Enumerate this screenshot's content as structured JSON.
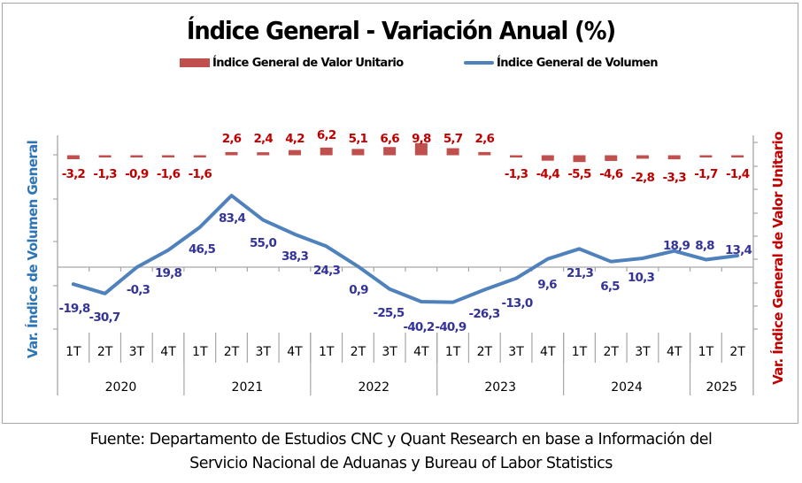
{
  "chart_data": {
    "type": "bar+line",
    "title": "Índice General - Variación Anual (%)",
    "legend": {
      "placement": "top",
      "entries": [
        {
          "name": "Índice General de Valor Unitario",
          "type": "bar",
          "color": "#c0504d"
        },
        {
          "name": "Índice General de Volumen",
          "type": "line",
          "color": "#4f81bd"
        }
      ]
    },
    "years": [
      {
        "label": "2020",
        "quarters": 4
      },
      {
        "label": "2021",
        "quarters": 4
      },
      {
        "label": "2022",
        "quarters": 4
      },
      {
        "label": "2023",
        "quarters": 4
      },
      {
        "label": "2024",
        "quarters": 4
      },
      {
        "label": "2025",
        "quarters": 2
      }
    ],
    "categories": [
      "1T",
      "2T",
      "3T",
      "4T",
      "1T",
      "2T",
      "3T",
      "4T",
      "1T",
      "2T",
      "3T",
      "4T",
      "1T",
      "2T",
      "3T",
      "4T",
      "1T",
      "2T",
      "3T",
      "4T",
      "1T",
      "2T"
    ],
    "series": [
      {
        "name": "Índice General de Valor Unitario",
        "type": "bar",
        "axis": "right",
        "color": "#c0504d",
        "label_color": "#c00000",
        "values": [
          -3.2,
          -1.3,
          -0.9,
          -1.6,
          -1.6,
          2.6,
          2.4,
          4.2,
          6.2,
          5.1,
          6.6,
          9.8,
          5.7,
          2.6,
          -1.3,
          -4.4,
          -5.5,
          -4.6,
          -2.8,
          -3.3,
          -1.7,
          -1.4
        ],
        "labels": [
          "-3,2",
          "-1,3",
          "-0,9",
          "-1,6",
          "-1,6",
          "2,6",
          "2,4",
          "4,2",
          "6,2",
          "5,1",
          "6,6",
          "9,8",
          "5,7",
          "2,6",
          "-1,3",
          "-4,4",
          "-5,5",
          "-4,6",
          "-2,8",
          "-3,3",
          "-1,7",
          "-1,4"
        ]
      },
      {
        "name": "Índice General de Volumen",
        "type": "line",
        "axis": "left",
        "color": "#4f81bd",
        "label_color": "#333399",
        "values": [
          -19.8,
          -30.7,
          -0.3,
          19.8,
          46.5,
          83.4,
          55.0,
          38.3,
          24.3,
          0.9,
          -25.5,
          -40.2,
          -40.9,
          -26.3,
          -13.0,
          9.6,
          21.3,
          6.5,
          10.3,
          18.9,
          8.8,
          13.4
        ],
        "labels": [
          "-19,8",
          "-30,7",
          "-0,3",
          "19,8",
          "46,5",
          "83,4",
          "55,0",
          "38,3",
          "24,3",
          "0,9",
          "-25,5",
          "-40,2",
          "-40,9",
          "-26,3",
          "-13,0",
          "9,6",
          "21,3",
          "6,5",
          "10,3",
          "18,9",
          "8,8",
          "13,4"
        ]
      }
    ],
    "ylabel_left": "Var. Índice de Volumen General",
    "ylabel_right": "Var. Índice General de Valor Unitario",
    "ylabel_left_color": "#2e75b6",
    "ylabel_right_color": "#c00000",
    "ylim_left": [
      -72,
      130
    ],
    "ylim_right": [
      -20,
      90
    ],
    "tick_labels_visible": false,
    "grid": false
  },
  "footer": {
    "line1": "Fuente: Departamento de Estudios CNC y Quant Research en base a Información del",
    "line2": "Servicio Nacional de Aduanas y Bureau of Labor Statistics"
  }
}
